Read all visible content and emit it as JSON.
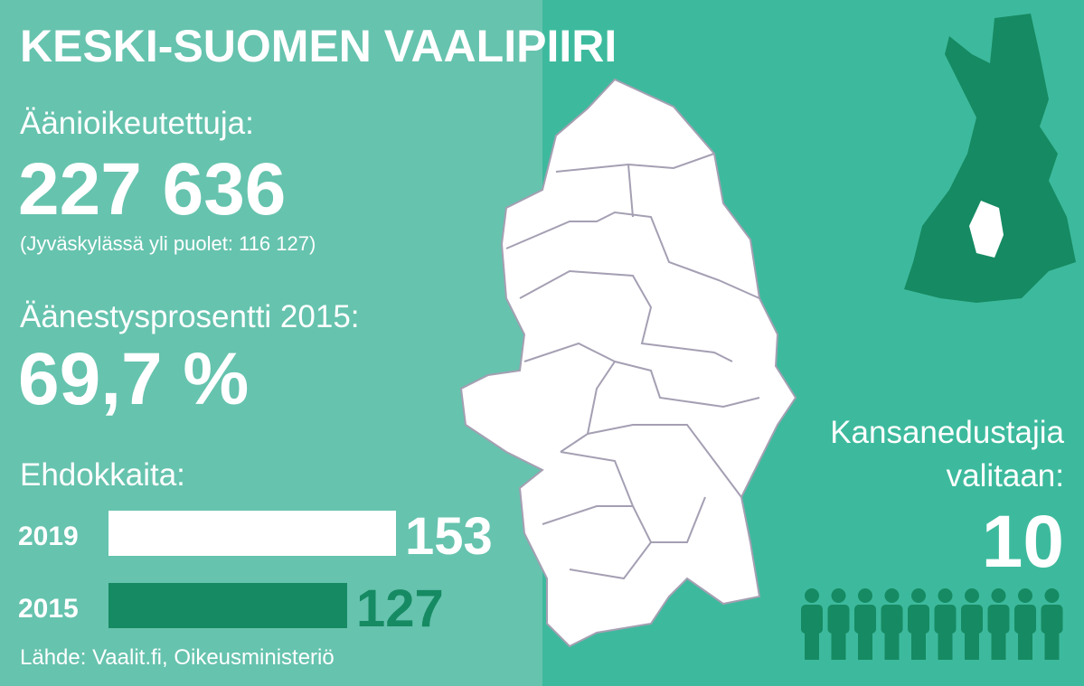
{
  "title": "KESKI-SUOMEN VAALIPIIRI",
  "eligible_label": "Äänioikeutettuja:",
  "eligible_value": "227 636",
  "eligible_note": "(Jyväskylässä yli puolet: 116 127)",
  "turnout_label": "Äänestysprosentti 2015:",
  "turnout_value": "69,7 %",
  "seats_label": [
    "Kansanedustajia",
    "valitaan:"
  ],
  "seats": 10,
  "source": "Lähde: Vaalit.fi, Oikeusministeriö",
  "chart_data": {
    "type": "bar",
    "orientation": "horizontal",
    "title": "Ehdokkaita:",
    "categories": [
      "2019",
      "2015"
    ],
    "values": [
      153,
      127
    ],
    "colors": [
      "#ffffff",
      "#168a62"
    ]
  }
}
